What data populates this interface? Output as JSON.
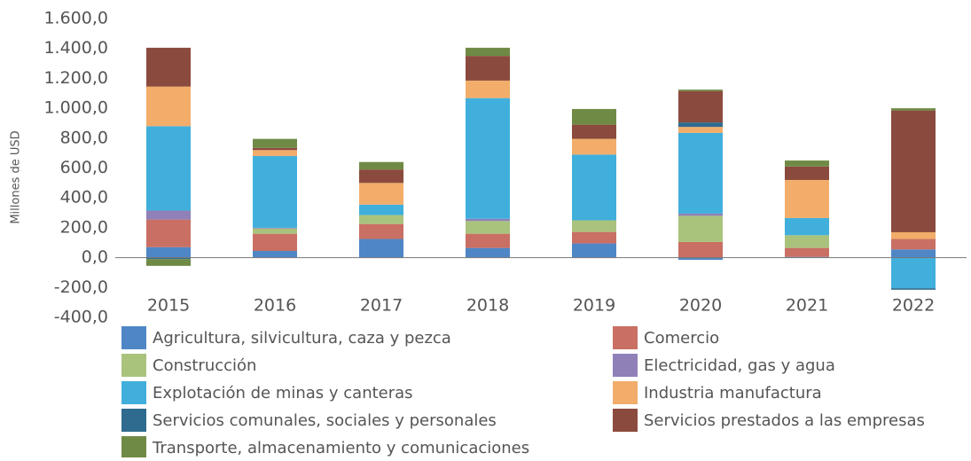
{
  "chart_data": {
    "type": "stacked_bar",
    "y_label": "Millones de USD",
    "categories": [
      "2015",
      "2016",
      "2017",
      "2018",
      "2019",
      "2020",
      "2021",
      "2022"
    ],
    "series": [
      {
        "name": "Agricultura, silvicultura, caza y pezca",
        "color": "#4f86c6",
        "values": [
          70,
          45,
          125,
          65,
          95,
          -15,
          5,
          55
        ]
      },
      {
        "name": "Comercio",
        "color": "#c96f63",
        "values": [
          185,
          115,
          100,
          95,
          77,
          105,
          60,
          70
        ]
      },
      {
        "name": "Construcción",
        "color": "#a9c37d",
        "values": [
          0,
          35,
          60,
          85,
          78,
          175,
          85,
          0
        ]
      },
      {
        "name": "Electricidad, gas y agua",
        "color": "#9080b8",
        "values": [
          60,
          5,
          0,
          15,
          0,
          15,
          0,
          0
        ]
      },
      {
        "name": "Explotación de minas y canteras",
        "color": "#41afdc",
        "values": [
          565,
          480,
          70,
          808,
          440,
          540,
          115,
          -205
        ]
      },
      {
        "name": "Industria manufactura",
        "color": "#f2ad6a",
        "values": [
          265,
          40,
          145,
          117,
          105,
          40,
          255,
          45
        ]
      },
      {
        "name": "Servicios comunales, sociales y personales",
        "color": "#2f6b8f",
        "values": [
          -10,
          0,
          0,
          0,
          0,
          30,
          0,
          -10
        ]
      },
      {
        "name": "Servicios prestados a las empresas",
        "color": "#8b4a3e",
        "values": [
          260,
          15,
          90,
          165,
          95,
          210,
          90,
          815
        ]
      },
      {
        "name": "Transporte, almacenamiento y comunicaciones",
        "color": "#6f8a45",
        "values": [
          -45,
          60,
          50,
          55,
          105,
          10,
          40,
          15
        ]
      }
    ],
    "ylim": [
      -400,
      1600
    ],
    "yticks": [
      {
        "value": -400,
        "label": "-400,0"
      },
      {
        "value": -200,
        "label": "-200,0"
      },
      {
        "value": 0,
        "label": "0,0"
      },
      {
        "value": 200,
        "label": "200,0"
      },
      {
        "value": 400,
        "label": "400,0"
      },
      {
        "value": 600,
        "label": "600,0"
      },
      {
        "value": 800,
        "label": "800,0"
      },
      {
        "value": 1000,
        "label": "1.000,0"
      },
      {
        "value": 1200,
        "label": "1.200,0"
      },
      {
        "value": 1400,
        "label": "1.400,0"
      },
      {
        "value": 1600,
        "label": "1.600,0"
      }
    ]
  }
}
